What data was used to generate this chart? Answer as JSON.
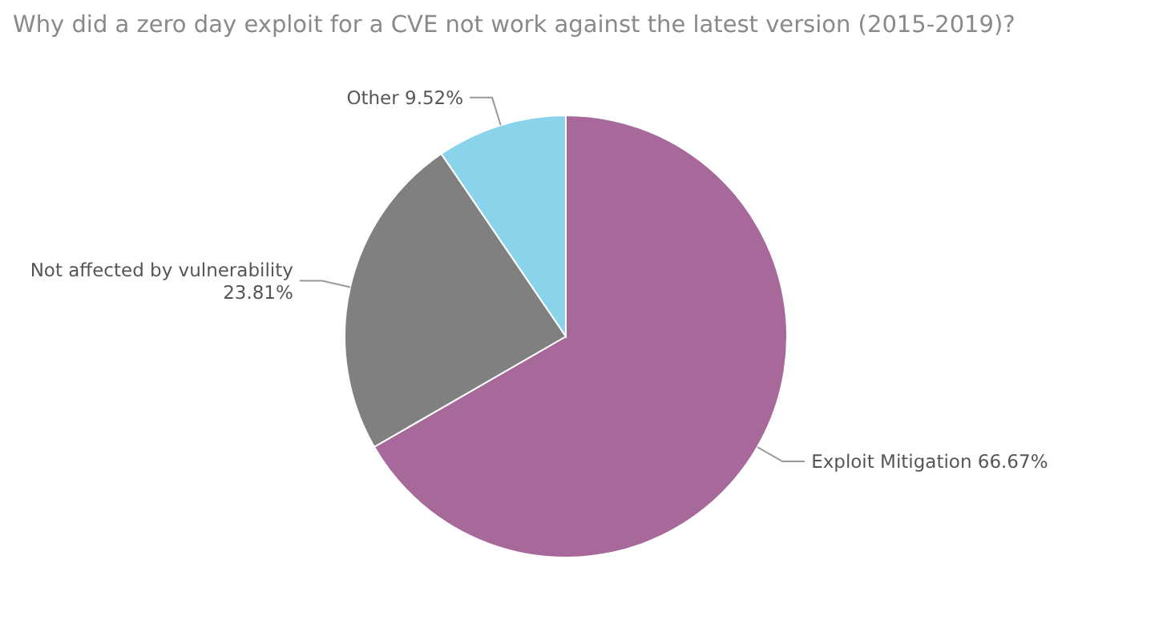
{
  "chart_data": {
    "type": "pie",
    "title": "Why did a zero day exploit for a CVE not work against the latest version (2015-2019)?",
    "categories": [
      "Exploit Mitigation",
      "Not affected by vulnerability",
      "Other"
    ],
    "values": [
      66.67,
      23.81,
      9.52
    ],
    "value_labels": [
      "66.67%",
      "23.81%",
      "9.52%"
    ],
    "colors": [
      "#a66999",
      "#808080",
      "#8ad4eb"
    ],
    "legend": false
  }
}
